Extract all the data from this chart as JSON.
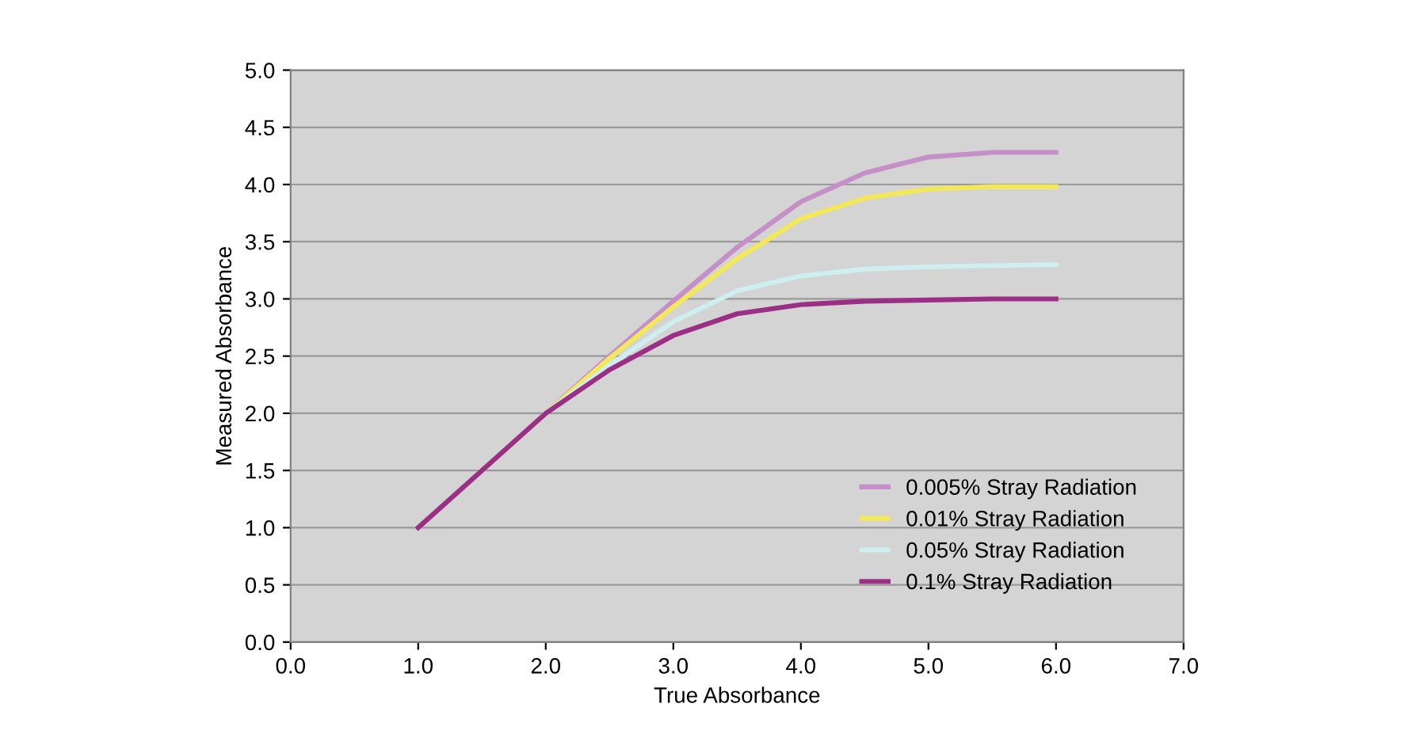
{
  "chart_data": {
    "type": "line",
    "xlabel": "True Absorbance",
    "ylabel": "Measured Absorbance",
    "xlim": [
      0,
      7
    ],
    "ylim": [
      0,
      5
    ],
    "xticks": [
      {
        "value": 0,
        "label": "0.0"
      },
      {
        "value": 1,
        "label": "1.0"
      },
      {
        "value": 2,
        "label": "2.0"
      },
      {
        "value": 3,
        "label": "3.0"
      },
      {
        "value": 4,
        "label": "4.0"
      },
      {
        "value": 5,
        "label": "5.0"
      },
      {
        "value": 6,
        "label": "6.0"
      },
      {
        "value": 7,
        "label": "7.0"
      }
    ],
    "yticks": [
      {
        "value": 0,
        "label": "0.0"
      },
      {
        "value": 0.5,
        "label": "0.5"
      },
      {
        "value": 1,
        "label": "1.0"
      },
      {
        "value": 1.5,
        "label": "1.5"
      },
      {
        "value": 2,
        "label": "2.0"
      },
      {
        "value": 2.5,
        "label": "2.5"
      },
      {
        "value": 3,
        "label": "3.0"
      },
      {
        "value": 3.5,
        "label": "3.5"
      },
      {
        "value": 4,
        "label": "4.0"
      },
      {
        "value": 4.5,
        "label": "4.5"
      },
      {
        "value": 5,
        "label": "5.0"
      }
    ],
    "x": [
      1,
      2,
      2.5,
      3,
      3.5,
      4,
      4.5,
      5,
      5.5,
      6
    ],
    "series": [
      {
        "name": "0.005% Stray Radiation",
        "color": "#c58fc8",
        "values": [
          1,
          2,
          2.5,
          2.98,
          3.45,
          3.85,
          4.1,
          4.24,
          4.28,
          4.28
        ]
      },
      {
        "name": "0.01% Stray Radiation",
        "color": "#f2e85a",
        "values": [
          1,
          2,
          2.48,
          2.93,
          3.35,
          3.7,
          3.88,
          3.96,
          3.98,
          3.98
        ]
      },
      {
        "name": "0.05% Stray Radiation",
        "color": "#cfeef0",
        "values": [
          1,
          2,
          2.42,
          2.8,
          3.07,
          3.2,
          3.26,
          3.28,
          3.29,
          3.3
        ]
      },
      {
        "name": "0.1% Stray Radiation",
        "color": "#9b2f86",
        "values": [
          1,
          2,
          2.38,
          2.68,
          2.87,
          2.95,
          2.98,
          2.99,
          3.0,
          3.0
        ]
      }
    ],
    "grid": "y",
    "legend": "bottom right",
    "marker": "none",
    "line_style": "solid"
  }
}
